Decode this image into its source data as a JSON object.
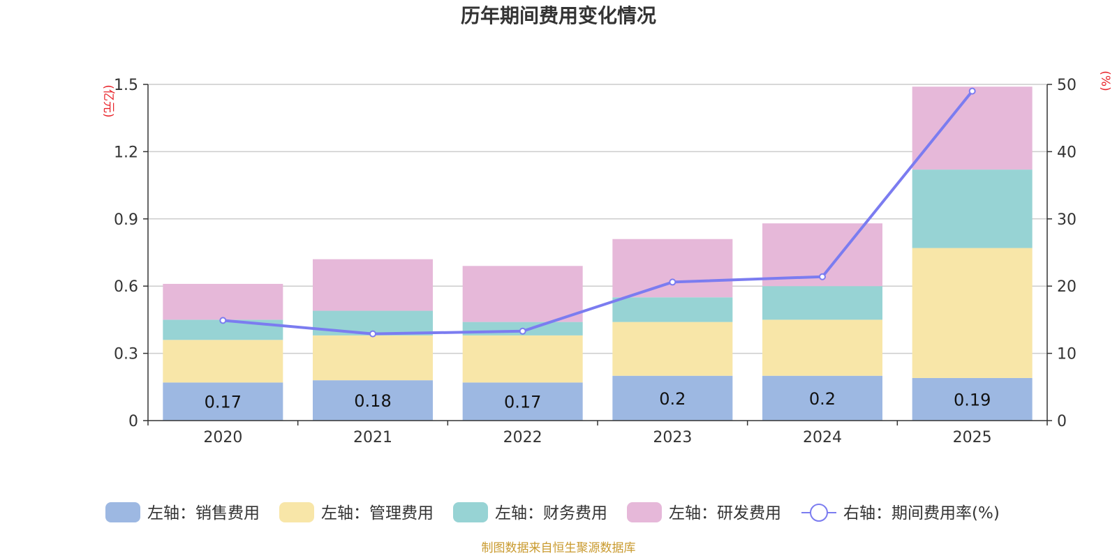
{
  "chart_data": {
    "type": "bar",
    "stacked": true,
    "title": "历年期间费用变化情况",
    "categories": [
      "2020",
      "2021",
      "2022",
      "2023",
      "2024",
      "2025"
    ],
    "left_axis": {
      "unit": "(亿元)",
      "ylim": [
        0,
        1.5
      ],
      "ticks": [
        "0",
        "0.3",
        "0.6",
        "0.9",
        "1.2",
        "1.5"
      ],
      "tick_values": [
        0,
        0.3,
        0.6,
        0.9,
        1.2,
        1.5
      ]
    },
    "right_axis": {
      "unit": "(%)",
      "ylim": [
        0,
        50
      ],
      "ticks": [
        "0",
        "10",
        "20",
        "30",
        "40",
        "50"
      ],
      "tick_values": [
        0,
        10,
        20,
        30,
        40,
        50
      ]
    },
    "series": [
      {
        "name": "左轴：销售费用",
        "axis": "left",
        "type": "bar",
        "color": "#9db8e2",
        "values": [
          0.17,
          0.18,
          0.17,
          0.2,
          0.2,
          0.19
        ],
        "labels": [
          "0.17",
          "0.18",
          "0.17",
          "0.2",
          "0.2",
          "0.19"
        ]
      },
      {
        "name": "左轴：管理费用",
        "axis": "left",
        "type": "bar",
        "color": "#f8e6a8",
        "values": [
          0.19,
          0.2,
          0.21,
          0.24,
          0.25,
          0.58
        ]
      },
      {
        "name": "左轴：财务费用",
        "axis": "left",
        "type": "bar",
        "color": "#97d3d4",
        "values": [
          0.09,
          0.11,
          0.06,
          0.11,
          0.15,
          0.35
        ]
      },
      {
        "name": "左轴：研发费用",
        "axis": "left",
        "type": "bar",
        "color": "#e6b8d9",
        "values": [
          0.16,
          0.23,
          0.25,
          0.26,
          0.28,
          0.37
        ]
      },
      {
        "name": "右轴：期间费用率(%)",
        "axis": "right",
        "type": "line",
        "color": "#7b7cf0",
        "values": [
          14.9,
          12.9,
          13.3,
          20.6,
          21.4,
          49.0
        ]
      }
    ],
    "source": "制图数据来自恒生聚源数据库"
  }
}
